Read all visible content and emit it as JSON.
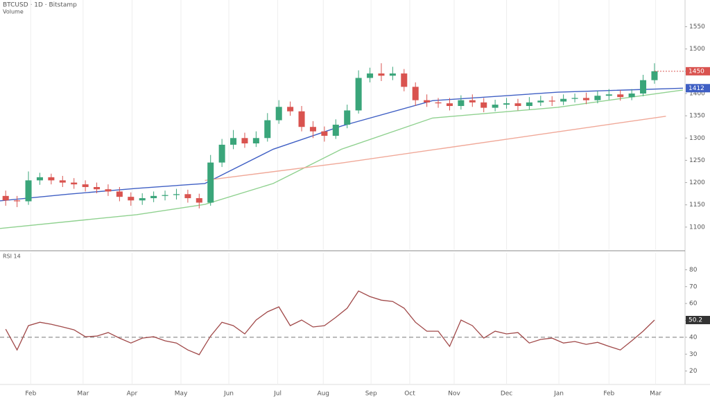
{
  "chart_data": [
    {
      "type": "candlestick",
      "title": "BTCUSD · 1D · Bitstamp",
      "subtitle": "Volume",
      "up_color": "#3aa57a",
      "down_color": "#d9534f",
      "grid": true,
      "xlim": [
        0,
        60
      ],
      "ylim": [
        1050,
        1610
      ],
      "yticks": [
        1550,
        1500,
        1450,
        1400,
        1350,
        1300,
        1250,
        1200,
        1150,
        1100
      ],
      "open": [
        1170,
        1160,
        1158,
        1205,
        1212,
        1205,
        1200,
        1196,
        1190,
        1185,
        1180,
        1168,
        1160,
        1165,
        1170,
        1172,
        1174,
        1165,
        1155,
        1245,
        1285,
        1300,
        1288,
        1300,
        1340,
        1370,
        1360,
        1325,
        1315,
        1305,
        1330,
        1362,
        1435,
        1445,
        1440,
        1445,
        1415,
        1385,
        1380,
        1378,
        1372,
        1385,
        1380,
        1368,
        1375,
        1378,
        1372,
        1380,
        1384,
        1382,
        1388,
        1390,
        1385,
        1395,
        1398,
        1392,
        1400,
        1430
      ],
      "high": [
        1182,
        1170,
        1225,
        1222,
        1220,
        1215,
        1210,
        1205,
        1200,
        1196,
        1190,
        1178,
        1176,
        1180,
        1182,
        1186,
        1184,
        1175,
        1262,
        1298,
        1318,
        1312,
        1315,
        1356,
        1385,
        1382,
        1372,
        1338,
        1326,
        1342,
        1375,
        1452,
        1458,
        1468,
        1460,
        1455,
        1425,
        1398,
        1390,
        1390,
        1396,
        1398,
        1390,
        1386,
        1390,
        1388,
        1392,
        1395,
        1394,
        1398,
        1400,
        1402,
        1406,
        1410,
        1408,
        1410,
        1442,
        1468
      ],
      "low": [
        1148,
        1145,
        1150,
        1195,
        1196,
        1190,
        1186,
        1180,
        1176,
        1170,
        1158,
        1148,
        1150,
        1156,
        1160,
        1162,
        1155,
        1142,
        1148,
        1235,
        1275,
        1278,
        1280,
        1292,
        1332,
        1350,
        1315,
        1300,
        1292,
        1298,
        1322,
        1355,
        1425,
        1428,
        1430,
        1405,
        1372,
        1370,
        1368,
        1362,
        1364,
        1370,
        1358,
        1360,
        1366,
        1362,
        1364,
        1372,
        1372,
        1374,
        1380,
        1376,
        1378,
        1386,
        1384,
        1385,
        1394,
        1422
      ],
      "close": [
        1160,
        1158,
        1205,
        1212,
        1205,
        1200,
        1196,
        1190,
        1185,
        1180,
        1168,
        1160,
        1165,
        1170,
        1172,
        1174,
        1165,
        1155,
        1245,
        1285,
        1300,
        1288,
        1300,
        1340,
        1370,
        1360,
        1325,
        1315,
        1305,
        1330,
        1362,
        1435,
        1445,
        1440,
        1445,
        1415,
        1385,
        1380,
        1378,
        1372,
        1385,
        1380,
        1368,
        1375,
        1378,
        1372,
        1380,
        1384,
        1382,
        1388,
        1390,
        1385,
        1395,
        1398,
        1392,
        1400,
        1430,
        1450
      ],
      "series": [
        {
          "color": "#3f5fc4",
          "x": [
            0,
            6,
            12,
            18,
            24,
            30,
            38,
            49,
            60
          ],
          "values": [
            1159,
            1174,
            1187,
            1198,
            1275,
            1327,
            1384,
            1403,
            1412
          ]
        },
        {
          "color": "#8fd18f",
          "x": [
            0,
            12,
            18,
            24,
            30,
            38,
            49,
            60
          ],
          "values": [
            1097,
            1128,
            1151,
            1198,
            1275,
            1345,
            1369,
            1408
          ]
        },
        {
          "color": "#f0a898",
          "x": [
            18,
            30,
            49,
            58.5
          ],
          "values": [
            1205,
            1244,
            1314,
            1349
          ]
        }
      ]
    },
    {
      "type": "line",
      "title": "RSI 14",
      "color": "#a04848",
      "grid": true,
      "xlim": [
        0,
        60
      ],
      "ylim": [
        10,
        90
      ],
      "yticks": [
        80,
        70,
        60,
        50,
        40,
        30,
        20
      ],
      "midline": 40,
      "values": [
        44.8,
        32.5,
        46.9,
        48.9,
        47.7,
        46.1,
        44.4,
        40.3,
        40.7,
        42.8,
        39.5,
        36.6,
        39.5,
        40.3,
        37.9,
        36.6,
        32.5,
        29.7,
        40.7,
        48.9,
        46.9,
        42.0,
        50.2,
        55.1,
        58.0,
        46.9,
        50.2,
        46.1,
        46.9,
        51.8,
        57.2,
        67.4,
        64.1,
        62.0,
        61.2,
        57.2,
        48.9,
        43.6,
        43.6,
        34.6,
        50.2,
        46.9,
        39.5,
        43.6,
        42.0,
        42.8,
        36.6,
        38.7,
        39.5,
        36.6,
        37.5,
        35.8,
        37.0,
        34.6,
        32.5,
        37.9,
        43.6,
        50.2
      ],
      "xticks": [
        {
          "value": 2.7,
          "label": "Feb"
        },
        {
          "value": 7.3,
          "label": "Mar"
        },
        {
          "value": 11.6,
          "label": "Apr"
        },
        {
          "value": 15.9,
          "label": "May"
        },
        {
          "value": 20.1,
          "label": "Jun"
        },
        {
          "value": 24.4,
          "label": "Jul"
        },
        {
          "value": 28.4,
          "label": "Aug"
        },
        {
          "value": 32.6,
          "label": "Sep"
        },
        {
          "value": 36,
          "label": "Oct"
        },
        {
          "value": 39.9,
          "label": "Nov"
        },
        {
          "value": 44.5,
          "label": "Dec"
        },
        {
          "value": 49.1,
          "label": "Jan"
        },
        {
          "value": 53.5,
          "label": "Feb"
        },
        {
          "value": 57.6,
          "label": "Mar"
        }
      ]
    }
  ]
}
